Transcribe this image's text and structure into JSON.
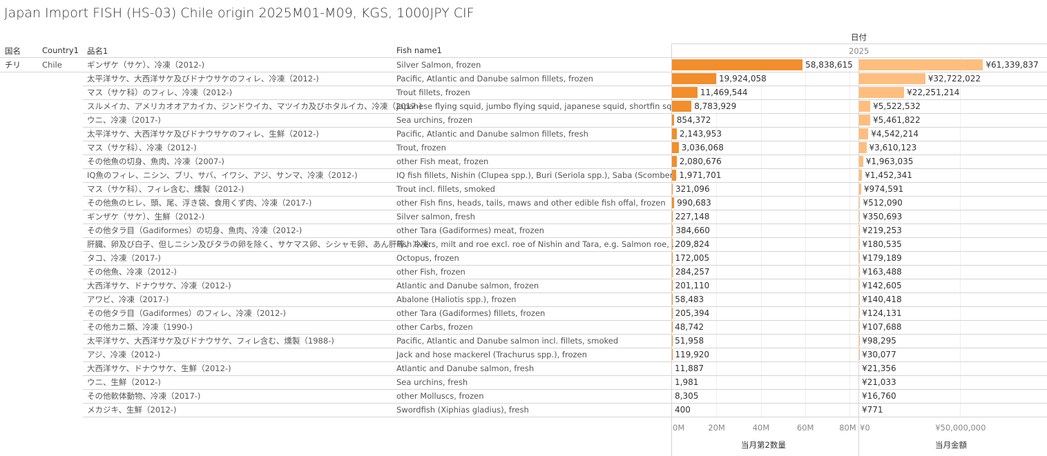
{
  "title": "Japan Import FISH (HS-03) Chile origin 2025M01-M09, KGS, 1000JPY CIF",
  "column_header": "日付",
  "year": "2025",
  "headers": {
    "country": "国名",
    "country1": "Country1",
    "item": "品名1",
    "fish": "Fish name1"
  },
  "country": "チリ",
  "country1": "Chile",
  "colors": {
    "qty_bar": "#f28e2b",
    "amount_bar": "#ffbe7d"
  },
  "chart_data": {
    "type": "bar",
    "orientation": "horizontal",
    "categories": [
      {
        "jp": "ギンザケ（サケ）、冷凍（2012-)",
        "en": "Silver Salmon, frozen"
      },
      {
        "jp": "太平洋サケ、大西洋サケ及びドナウサケのフィレ、冷凍（2012-)",
        "en": "Pacific, Atlantic and Danube salmon fillets, frozen"
      },
      {
        "jp": "マス（サケ科）のフィレ、冷凍（2012-)",
        "en": "Trout fillets, frozen"
      },
      {
        "jp": "スルメイカ、アメリカオオアカイカ、ジンドウイカ、マツイカ及びホタルイカ、冷凍（2017-)",
        "en": "Japanese flying squid, jumbo flying squid, japanese squid, shortfin sq.."
      },
      {
        "jp": "ウニ、冷凍（2017-)",
        "en": "Sea urchins, frozen"
      },
      {
        "jp": "太平洋サケ、大西洋サケ及びドナウサケのフィレ、生鮮（2012-)",
        "en": "Pacific, Atlantic and Danube salmon fillets, fresh"
      },
      {
        "jp": "マス（サケ科）、冷凍（2012-)",
        "en": "Trout, frozen"
      },
      {
        "jp": "その他魚の切身、魚肉、冷凍（2007-)",
        "en": "other Fish meat, frozen"
      },
      {
        "jp": "IQ魚のフィレ、ニシン、ブリ、サバ、イワシ、アジ、サンマ、冷凍（2012-)",
        "en": "IQ fish fillets, Nishin (Clupea spp.), Buri (Seriola spp.), Saba (Scomber.."
      },
      {
        "jp": "マス（サケ科）、フィレ含む、燻製（2012-)",
        "en": "Trout incl. fillets, smoked"
      },
      {
        "jp": "その他魚のヒレ、頭、尾、浮き袋、食用くず肉、冷凍（2017-)",
        "en": "other Fish fins, heads, tails, maws and other edible fish offal, frozen"
      },
      {
        "jp": "ギンザケ（サケ）、生鮮（2012-)",
        "en": "Silver salmon, fresh"
      },
      {
        "jp": "その他タラ目（Gadiformes）の切身、魚肉、冷凍（2012-)",
        "en": "other Tara (Gadiformes) meat, frozen"
      },
      {
        "jp": "肝臓、卵及び白子、但しニシン及びタラの卵を除く、サケマス卵、シシャモ卵、あん肝等、冷凍..",
        "en": "Fish livers, milt and roe excl. roe of Nishin and Tara, e.g. Salmon roe, .."
      },
      {
        "jp": "タコ、冷凍（2017-)",
        "en": "Octopus, frozen"
      },
      {
        "jp": "その他魚、冷凍（2012-)",
        "en": "other Fish, frozen"
      },
      {
        "jp": "大西洋サケ、ドナウサケ、冷凍（2012-)",
        "en": "Atlantic and Danube salmon, frozen"
      },
      {
        "jp": "アワビ、冷凍（2017-)",
        "en": "Abalone (Haliotis spp.), frozen"
      },
      {
        "jp": "その他タラ目（Gadiformes）のフィレ、冷凍（2012-)",
        "en": "other Tara (Gadiformes) fillets, frozen"
      },
      {
        "jp": "その他カニ類、冷凍（1990-)",
        "en": "other Carbs, frozen"
      },
      {
        "jp": "太平洋サケ、大西洋サケ及びドナウサケ、フィレ含む、燻製（1988-)",
        "en": "Pacific, Atlantic and Danube salmon incl. fillets, smoked"
      },
      {
        "jp": "アジ、冷凍（2012-)",
        "en": "Jack and hose mackerel (Trachurus spp.), frozen"
      },
      {
        "jp": "大西洋サケ、ドナウサケ、生鮮（2012-)",
        "en": "Atlantic and Danube salmon, fresh"
      },
      {
        "jp": "ウニ、生鮮（2012-)",
        "en": "Sea urchins, fresh"
      },
      {
        "jp": "その他軟体動物、冷凍（2017-)",
        "en": "other Molluscs, frozen"
      },
      {
        "jp": "メカジキ、生鮮（2012-)",
        "en": "Swordfish (Xiphias gladius), fresh"
      }
    ],
    "series": [
      {
        "name": "当月第2数量",
        "axis_label": "当月第2数量",
        "ticks": [
          "0M",
          "20M",
          "40M",
          "60M",
          "80M"
        ],
        "tick_values": [
          0,
          20000000,
          40000000,
          60000000,
          80000000
        ],
        "xlim": [
          0,
          84000000
        ],
        "values": [
          58838615,
          19924058,
          11469544,
          8783929,
          854372,
          2143953,
          3036068,
          2080676,
          1971701,
          321096,
          990683,
          227148,
          384660,
          209824,
          172005,
          284257,
          201110,
          58483,
          205394,
          48742,
          51958,
          119920,
          11887,
          1981,
          8305,
          400
        ],
        "labels": [
          "58,838,615",
          "19,924,058",
          "11,469,544",
          "8,783,929",
          "854,372",
          "2,143,953",
          "3,036,068",
          "2,080,676",
          "1,971,701",
          "321,096",
          "990,683",
          "227,148",
          "384,660",
          "209,824",
          "172,005",
          "284,257",
          "201,110",
          "58,483",
          "205,394",
          "48,742",
          "51,958",
          "119,920",
          "11,887",
          "1,981",
          "8,305",
          "400"
        ]
      },
      {
        "name": "当月金額",
        "axis_label": "当月金額",
        "ticks": [
          "¥0",
          "¥50,000,000"
        ],
        "tick_values": [
          0,
          50000000
        ],
        "xlim": [
          0,
          93000000
        ],
        "values": [
          61339837,
          32722022,
          22251214,
          5522532,
          5461822,
          4542214,
          3610123,
          1963035,
          1452341,
          974591,
          512090,
          350693,
          219253,
          180535,
          179189,
          163488,
          142605,
          140418,
          124131,
          107688,
          98295,
          30077,
          21356,
          21033,
          16760,
          771
        ],
        "labels": [
          "¥61,339,837",
          "¥32,722,022",
          "¥22,251,214",
          "¥5,522,532",
          "¥5,461,822",
          "¥4,542,214",
          "¥3,610,123",
          "¥1,963,035",
          "¥1,452,341",
          "¥974,591",
          "¥512,090",
          "¥350,693",
          "¥219,253",
          "¥180,535",
          "¥179,189",
          "¥163,488",
          "¥142,605",
          "¥140,418",
          "¥124,131",
          "¥107,688",
          "¥98,295",
          "¥30,077",
          "¥21,356",
          "¥21,033",
          "¥16,760",
          "¥771"
        ]
      }
    ],
    "grid": true
  }
}
